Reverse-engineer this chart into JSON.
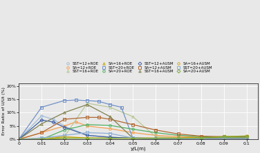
{
  "title": "",
  "xlabel": "y/L(m)",
  "ylabel": "Error Ratio of U/Ut (%)",
  "xlim": [
    0,
    0.105
  ],
  "ylim": [
    0,
    0.21
  ],
  "yticks": [
    0,
    0.05,
    0.1,
    0.15,
    0.2
  ],
  "ytick_labels": [
    "0%",
    "5%",
    "10%",
    "15%",
    "20%"
  ],
  "xticks": [
    0,
    0.01,
    0.02,
    0.03,
    0.04,
    0.05,
    0.06,
    0.07,
    0.08,
    0.09,
    0.1
  ],
  "background_color": "#e8e8e8",
  "series": [
    {
      "label": "SST=12+ROE",
      "color": "#a0bcd8",
      "marker": "o",
      "markersize": 2.5,
      "linewidth": 0.9,
      "x": [
        0,
        0.01,
        0.015,
        0.02,
        0.03,
        0.04,
        0.05,
        0.06,
        0.07,
        0.08,
        0.09,
        0.1
      ],
      "y": [
        0,
        0.088,
        0.075,
        0.05,
        0.015,
        0.008,
        0.004,
        0.003,
        0.002,
        0.002,
        0.002,
        0.002
      ]
    },
    {
      "label": "SA=12+ROE",
      "color": "#f5a050",
      "marker": "o",
      "markersize": 2.5,
      "linewidth": 0.9,
      "x": [
        0,
        0.01,
        0.02,
        0.025,
        0.03,
        0.04,
        0.05,
        0.06,
        0.07,
        0.08,
        0.09,
        0.1
      ],
      "y": [
        0,
        0.025,
        0.05,
        0.065,
        0.05,
        0.04,
        0.025,
        0.015,
        0.01,
        0.008,
        0.008,
        0.008
      ]
    },
    {
      "label": "SST=16+ROE",
      "color": "#b8c898",
      "marker": "^",
      "markersize": 2.5,
      "linewidth": 0.9,
      "x": [
        0,
        0.01,
        0.02,
        0.03,
        0.04,
        0.05,
        0.06,
        0.07,
        0.08,
        0.09,
        0.1
      ],
      "y": [
        0,
        0.005,
        0.01,
        0.135,
        0.12,
        0.085,
        0.01,
        0.005,
        0.005,
        0.005,
        0.005
      ]
    },
    {
      "label": "SA=16+ROE",
      "color": "#c8a800",
      "marker": "^",
      "markersize": 2.5,
      "linewidth": 0.9,
      "x": [
        0,
        0.01,
        0.02,
        0.03,
        0.04,
        0.05,
        0.06,
        0.07,
        0.08,
        0.09,
        0.1
      ],
      "y": [
        0,
        0.0,
        0.01,
        0.005,
        0.005,
        0.005,
        0.005,
        0.005,
        0.007,
        0.01,
        0.012
      ]
    },
    {
      "label": "SST=20+ROE",
      "color": "#7090c8",
      "marker": "s",
      "markersize": 2.5,
      "linewidth": 0.9,
      "x": [
        0,
        0.01,
        0.02,
        0.025,
        0.03,
        0.035,
        0.04,
        0.045,
        0.05,
        0.06,
        0.07,
        0.08,
        0.09,
        0.1
      ],
      "y": [
        0,
        0.12,
        0.145,
        0.147,
        0.145,
        0.142,
        0.13,
        0.12,
        0.005,
        0.003,
        0.002,
        0.002,
        0.002,
        0.002
      ]
    },
    {
      "label": "SA=20+ROE",
      "color": "#50b060",
      "marker": "o",
      "markersize": 2.5,
      "linewidth": 0.9,
      "x": [
        0,
        0.01,
        0.02,
        0.03,
        0.04,
        0.05,
        0.06,
        0.07,
        0.08,
        0.09,
        0.1
      ],
      "y": [
        0,
        0.0,
        0.035,
        0.055,
        0.052,
        0.038,
        0.025,
        0.015,
        0.01,
        0.008,
        0.008
      ]
    },
    {
      "label": "SST=12+AUSM",
      "color": "#4060a0",
      "marker": "D",
      "markersize": 2.5,
      "linewidth": 0.9,
      "x": [
        0,
        0.01,
        0.015,
        0.02,
        0.03,
        0.04,
        0.05,
        0.06,
        0.07,
        0.08,
        0.09,
        0.1
      ],
      "y": [
        0,
        0.072,
        0.065,
        0.045,
        0.015,
        0.008,
        0.004,
        0.003,
        0.002,
        0.002,
        0.002,
        0.002
      ]
    },
    {
      "label": "SA=12+AUSM",
      "color": "#b06830",
      "marker": "s",
      "markersize": 2.5,
      "linewidth": 0.9,
      "x": [
        0,
        0.01,
        0.02,
        0.03,
        0.035,
        0.04,
        0.05,
        0.06,
        0.07,
        0.08,
        0.09,
        0.1
      ],
      "y": [
        0,
        0.025,
        0.075,
        0.082,
        0.082,
        0.075,
        0.055,
        0.035,
        0.02,
        0.012,
        0.01,
        0.01
      ]
    },
    {
      "label": "SST=16+AUSM",
      "color": "#808050",
      "marker": "^",
      "markersize": 2.5,
      "linewidth": 0.9,
      "x": [
        0,
        0.01,
        0.02,
        0.03,
        0.04,
        0.05,
        0.06,
        0.07,
        0.08,
        0.09,
        0.1
      ],
      "y": [
        0,
        0.058,
        0.1,
        0.13,
        0.085,
        0.005,
        0.004,
        0.004,
        0.004,
        0.004,
        0.004
      ]
    },
    {
      "label": "SA=16+AUSM",
      "color": "#d4a820",
      "marker": "o",
      "markersize": 2.5,
      "linewidth": 0.9,
      "x": [
        0,
        0.01,
        0.02,
        0.03,
        0.04,
        0.05,
        0.06,
        0.07,
        0.08,
        0.09,
        0.1
      ],
      "y": [
        0,
        0.0,
        0.005,
        0.005,
        0.004,
        0.004,
        0.004,
        0.005,
        0.006,
        0.01,
        0.013
      ]
    },
    {
      "label": "SST=20+AUSM",
      "color": "#8aacd4",
      "marker": "s",
      "markersize": 2.5,
      "linewidth": 0.9,
      "x": [
        0,
        0.01,
        0.02,
        0.03,
        0.04,
        0.05,
        0.06,
        0.07,
        0.08,
        0.09,
        0.1
      ],
      "y": [
        0,
        0.005,
        0.015,
        0.025,
        0.022,
        0.005,
        0.003,
        0.002,
        0.002,
        0.002,
        0.002
      ]
    },
    {
      "label": "SA=20+AUSM",
      "color": "#78a838",
      "marker": "D",
      "markersize": 2.5,
      "linewidth": 0.9,
      "x": [
        0,
        0.01,
        0.02,
        0.03,
        0.04,
        0.05,
        0.06,
        0.07,
        0.08,
        0.09,
        0.1
      ],
      "y": [
        0,
        0.0,
        0.004,
        0.004,
        0.004,
        0.004,
        0.004,
        0.004,
        0.005,
        0.01,
        0.012
      ]
    }
  ],
  "legend_order": [
    "SST=12+ROE",
    "SA=12+ROE",
    "SST=16+ROE",
    "SA=16+ROE",
    "SST=20+ROE",
    "SA=20+ROE",
    "SST=12+AUSM",
    "SA=12+AUSM",
    "SST=16+AUSM",
    "SA=16+AUSM",
    "SST=20+AUSM",
    "SA=20+AUSM"
  ]
}
